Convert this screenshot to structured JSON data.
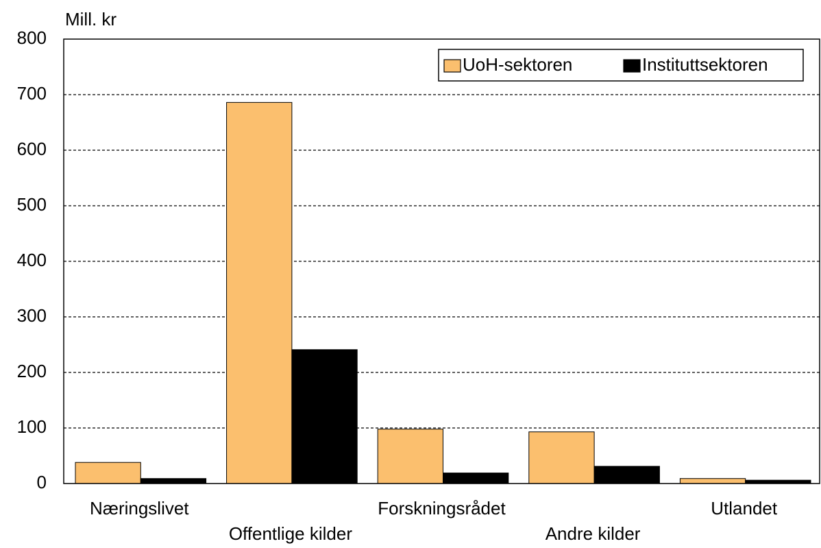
{
  "chart_data": {
    "type": "bar",
    "y_label": "Mill. kr",
    "categories": [
      "Næringslivet",
      "Offentlige kilder",
      "Forskningsrådet",
      "Andre kilder",
      "Utlandet"
    ],
    "series": [
      {
        "name": "UoH-sektoren",
        "color": "#fbbf6e",
        "values": [
          38,
          686,
          98,
          93,
          9
        ]
      },
      {
        "name": "Instituttsektoren",
        "color": "#000000",
        "values": [
          9,
          241,
          19,
          31,
          6
        ]
      }
    ],
    "ylim": [
      0,
      800
    ],
    "yticks": [
      0,
      100,
      200,
      300,
      400,
      500,
      600,
      700,
      800
    ],
    "grid": true,
    "legend": "top-right"
  }
}
